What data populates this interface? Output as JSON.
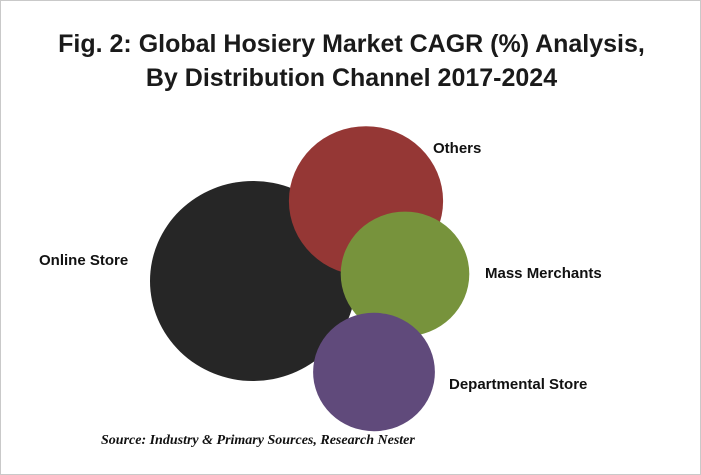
{
  "chart_data": {
    "type": "bubble",
    "title_lines": [
      "Fig. 2: Global Hosiery Market CAGR (%) Analysis,",
      "By Distribution Channel 2017-2024"
    ],
    "series": [
      {
        "name": "Online Store",
        "relative_size": 1.0,
        "color": "#262626"
      },
      {
        "name": "Others",
        "relative_size": 0.56,
        "color": "#953735"
      },
      {
        "name": "Mass Merchants",
        "relative_size": 0.39,
        "color": "#77933c"
      },
      {
        "name": "Departmental Store",
        "relative_size": 0.35,
        "color": "#604a7b"
      }
    ],
    "source": "Source: Industry & Primary Sources, Research Nester"
  }
}
